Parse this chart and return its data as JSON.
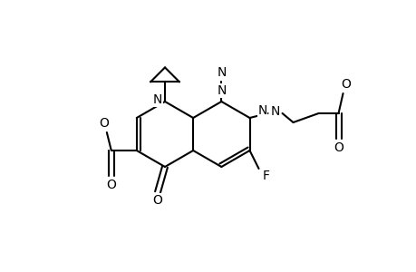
{
  "background_color": "#ffffff",
  "line_color": "#000000",
  "line_width": 1.5,
  "font_size": 10,
  "fig_width": 4.6,
  "fig_height": 3.0,
  "dpi": 100,
  "atoms": {
    "N_label": "N",
    "N2_label": "N",
    "F_label": "F",
    "O_labels": [
      "O",
      "O",
      "O",
      "O",
      "O"
    ]
  }
}
